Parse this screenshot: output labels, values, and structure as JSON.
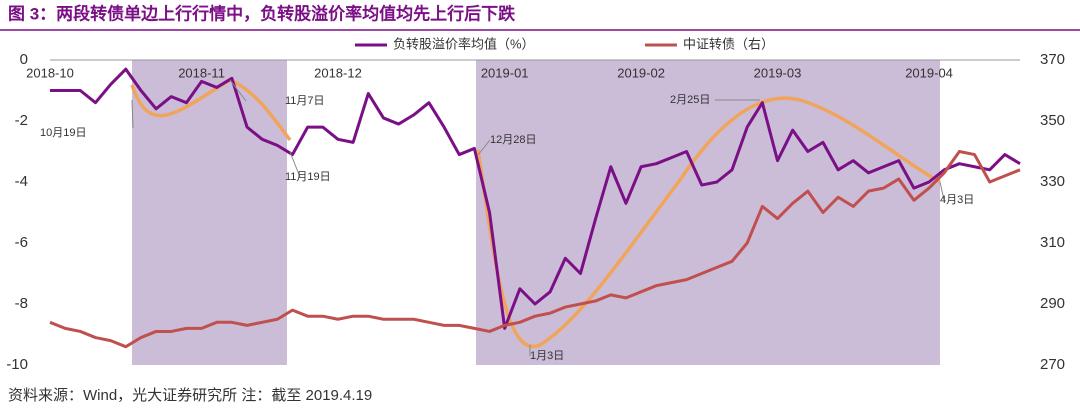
{
  "chart_data": {
    "type": "line",
    "title": "图 3：两段转债单边上行行情中，负转股溢价率均值均先上行后下跌",
    "source": "资料来源：Wind，光大证券研究所   注：截至 2019.4.19",
    "categories": [
      "2018-10",
      null,
      null,
      null,
      null,
      null,
      null,
      null,
      null,
      null,
      "2018-11",
      null,
      null,
      null,
      null,
      null,
      null,
      null,
      null,
      "2018-12",
      null,
      null,
      null,
      null,
      null,
      null,
      null,
      null,
      null,
      null,
      "2019-01",
      null,
      null,
      null,
      null,
      null,
      null,
      null,
      null,
      "2019-02",
      null,
      null,
      null,
      null,
      null,
      null,
      null,
      null,
      "2019-03",
      null,
      null,
      null,
      null,
      null,
      null,
      null,
      null,
      null,
      "2019-04",
      null,
      null,
      null,
      null,
      null,
      null
    ],
    "series": [
      {
        "name": "负转股溢价率均值（%）",
        "color": "#7b0f86",
        "axis": "y",
        "values": [
          -1.0,
          -1.0,
          -1.0,
          -1.4,
          -0.8,
          -0.3,
          -1.0,
          -1.6,
          -1.2,
          -1.4,
          -0.7,
          -0.9,
          -0.6,
          -2.2,
          -2.6,
          -2.8,
          -3.1,
          -2.2,
          -2.2,
          -2.6,
          -2.7,
          -1.1,
          -1.9,
          -2.1,
          -1.8,
          -1.4,
          -2.2,
          -3.1,
          -2.9,
          -5.0,
          -8.8,
          -7.5,
          -8.0,
          -7.6,
          -6.5,
          -7.0,
          -5.2,
          -3.5,
          -4.7,
          -3.5,
          -3.4,
          -3.2,
          -3.0,
          -4.1,
          -4.0,
          -3.6,
          -2.2,
          -1.4,
          -3.3,
          -2.3,
          -3.0,
          -2.7,
          -3.6,
          -3.3,
          -3.7,
          -3.5,
          -3.3,
          -4.2,
          -4.0,
          -3.6,
          -3.4,
          -3.5,
          -3.6,
          -3.1,
          -3.4
        ]
      },
      {
        "name": "中证转债（右）",
        "color": "#c0504d",
        "axis": "y2",
        "values": [
          284,
          282,
          281,
          279,
          278,
          276,
          279,
          281,
          281,
          282,
          282,
          284,
          284,
          283,
          284,
          285,
          288,
          286,
          286,
          285,
          286,
          286,
          285,
          285,
          285,
          284,
          283,
          283,
          282,
          281,
          283,
          284,
          286,
          287,
          289,
          290,
          291,
          293,
          292,
          294,
          296,
          297,
          298,
          300,
          302,
          304,
          310,
          322,
          318,
          323,
          327,
          320,
          325,
          322,
          327,
          328,
          331,
          324,
          328,
          333,
          340,
          339,
          330,
          332,
          334
        ]
      }
    ],
    "ylim": [
      -10,
      0
    ],
    "yticks": [
      0,
      -2,
      -4,
      -6,
      -8,
      -10
    ],
    "y2lim": [
      270,
      370
    ],
    "y2ticks": [
      270,
      290,
      310,
      330,
      350,
      370
    ],
    "annotations": [
      "10月19日",
      "11月7日",
      "11月19日",
      "12月28日",
      "1月3日",
      "2月25日",
      "4月3日"
    ]
  }
}
